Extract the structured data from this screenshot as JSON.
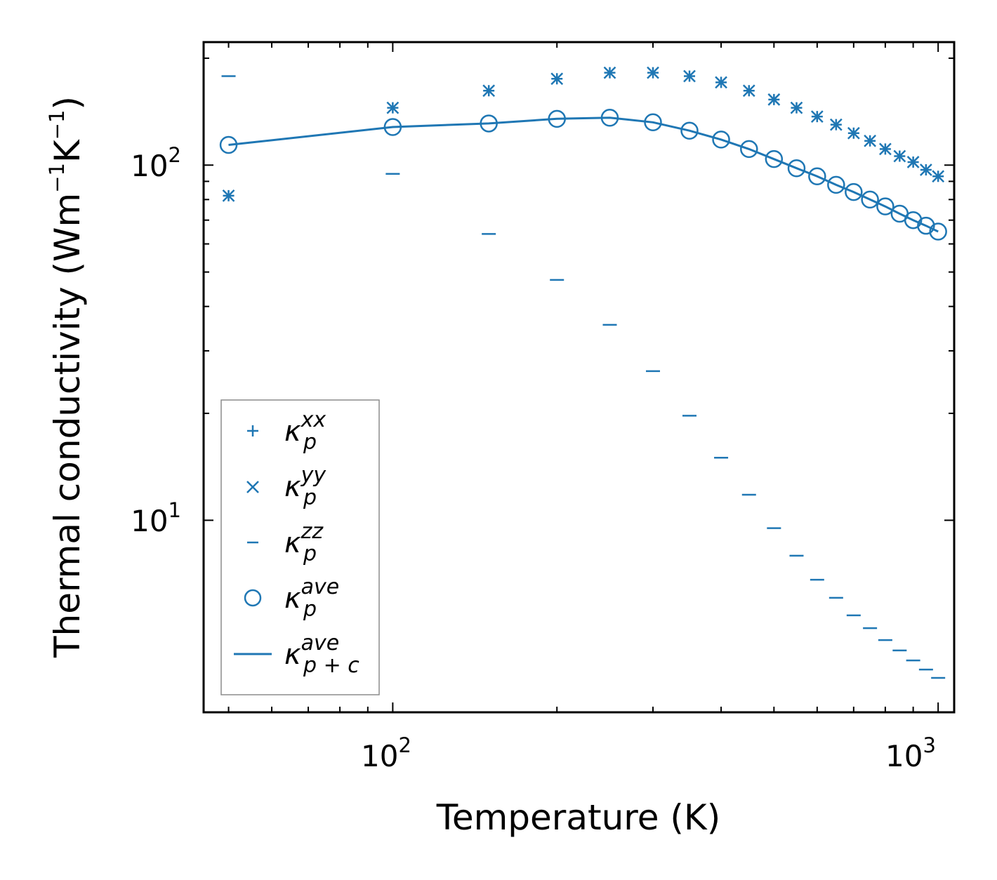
{
  "colors": {
    "series": "#1f77b4",
    "axis": "#000000",
    "legend_border": "#8c8c8c"
  },
  "chart_data": {
    "type": "scatter",
    "xscale": "log",
    "yscale": "log",
    "xlabel": "Temperature (K)",
    "ylabel": "Thermal conductivity (Wm",
    "ylabel_unit_parts": {
      "exp1": "−1",
      "mid": "K",
      "exp2": "−1",
      "close": ")"
    },
    "xlim": [
      45,
      1070
    ],
    "ylim": [
      2.88,
      222
    ],
    "xticks": [
      {
        "value": 100,
        "base": "10",
        "exp": "2"
      },
      {
        "value": 1000,
        "base": "10",
        "exp": "3"
      }
    ],
    "yticks": [
      {
        "value": 10,
        "base": "10",
        "exp": "1"
      },
      {
        "value": 100,
        "base": "10",
        "exp": "2"
      }
    ],
    "x": [
      50,
      100,
      150,
      200,
      250,
      300,
      350,
      400,
      450,
      500,
      550,
      600,
      650,
      700,
      750,
      800,
      850,
      900,
      950,
      1000
    ],
    "series": [
      {
        "name": "kappa_p_xx",
        "label_base": "κ",
        "label_sup": "xx",
        "label_sub": "p",
        "marker": "plus",
        "values": [
          82,
          145,
          162,
          175,
          182,
          182,
          178,
          171,
          162,
          153,
          145,
          137,
          130,
          123,
          117,
          111,
          106,
          102,
          97,
          93
        ]
      },
      {
        "name": "kappa_p_yy",
        "label_base": "κ",
        "label_sup": "yy",
        "label_sub": "p",
        "marker": "x",
        "values": [
          82,
          145,
          162,
          175,
          182,
          182,
          178,
          171,
          162,
          153,
          145,
          137,
          130,
          123,
          117,
          111,
          106,
          102,
          97,
          93
        ]
      },
      {
        "name": "kappa_p_zz",
        "label_base": "κ",
        "label_sup": "zz",
        "label_sub": "p",
        "marker": "hline",
        "values": [
          178,
          94.5,
          64,
          47.5,
          35.5,
          26.3,
          19.7,
          15,
          11.8,
          9.5,
          7.95,
          6.8,
          6.05,
          5.4,
          4.97,
          4.6,
          4.3,
          4.03,
          3.8,
          3.6
        ]
      },
      {
        "name": "kappa_p_ave",
        "label_base": "κ",
        "label_sup": "ave",
        "label_sub": "p",
        "marker": "circle",
        "values": [
          114,
          128,
          131,
          135,
          136,
          132,
          125,
          118,
          111,
          104,
          98,
          93,
          88,
          84,
          80,
          76.5,
          73,
          70,
          67.5,
          65
        ]
      },
      {
        "name": "kappa_pc_ave",
        "label_base": "κ",
        "label_sup": "ave",
        "label_sub": "p + c",
        "marker": "line",
        "values": [
          114,
          128,
          131,
          135,
          136,
          132,
          125,
          118,
          111,
          104,
          98,
          93,
          88,
          84,
          80,
          76.5,
          73,
          70,
          67.5,
          65
        ]
      }
    ],
    "legend_position": "lower-left"
  }
}
